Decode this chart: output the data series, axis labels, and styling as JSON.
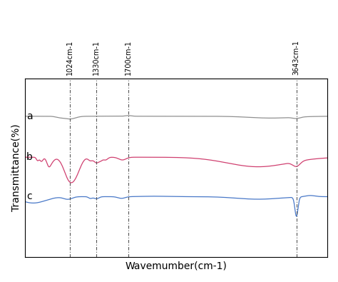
{
  "xlabel": "Wavemumber(cm-1)",
  "ylabel": "Transmittance(%)",
  "vlines": [
    1024,
    1330,
    1700,
    3643
  ],
  "vline_labels": [
    "1024cm-1",
    "1330cm-1",
    "1700cm-1",
    "3643cm-1"
  ],
  "curve_a_color": "#909090",
  "curve_b_color": "#d04070",
  "curve_c_color": "#4878c8",
  "background_color": "#ffffff",
  "xmin": 500,
  "xmax": 4000
}
